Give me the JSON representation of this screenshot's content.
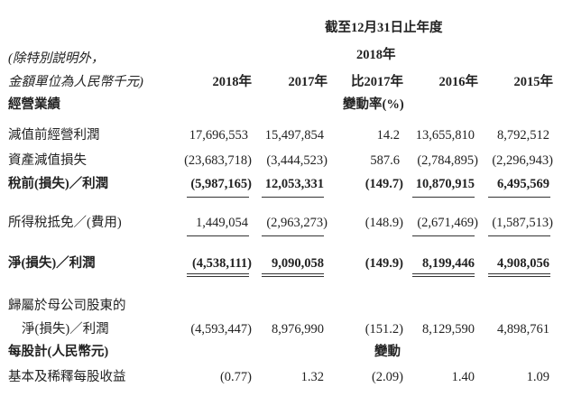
{
  "header": {
    "period": "截至12月31日止年度",
    "change_year": "2018年",
    "note_line1": "(除特別説明外，",
    "note_line2": "金額單位為人民幣千元)",
    "columns": [
      "2018年",
      "2017年",
      "比2017年",
      "2016年",
      "2015年"
    ],
    "section": "經營業績",
    "change_rate": "變動率(%)"
  },
  "rows": [
    {
      "label": "減值前經營利潤",
      "values": [
        "17,696,553",
        "15,497,854",
        "14.2",
        "13,655,810",
        "8,792,512"
      ]
    },
    {
      "label": "資產減值損失",
      "values": [
        "(23,683,718)",
        "(3,444,523)",
        "587.6",
        "(2,784,895)",
        "(2,296,943)"
      ]
    },
    {
      "label": "稅前(損失)／利潤",
      "values": [
        "(5,987,165)",
        "12,053,331",
        "(149.7)",
        "10,870,915",
        "6,495,569"
      ]
    },
    {
      "label": "所得稅抵免／(費用)",
      "values": [
        "1,449,054",
        "(2,963,273)",
        "(148.9)",
        "(2,671,469)",
        "(1,587,513)"
      ]
    },
    {
      "label": "淨(損失)／利潤",
      "values": [
        "(4,538,111)",
        "9,090,058",
        "(149.9)",
        "8,199,446",
        "4,908,056"
      ]
    },
    {
      "label": "歸屬於母公司股東的",
      "label2": "淨(損失)／利潤",
      "values": [
        "(4,593,447)",
        "8,976,990",
        "(151.2)",
        "8,129,590",
        "4,898,761"
      ]
    },
    {
      "label": "基本及稀釋每股收益",
      "values": [
        "(0.77)",
        "1.32",
        "(2.09)",
        "1.40",
        "1.09"
      ]
    }
  ],
  "per_share": {
    "label": "每股計(人民幣元)",
    "change": "變動"
  }
}
